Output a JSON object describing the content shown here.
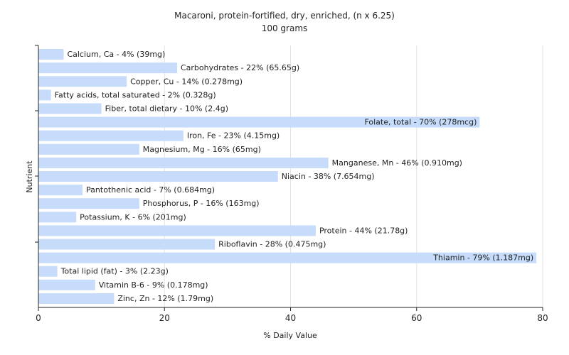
{
  "chart_data": {
    "type": "bar",
    "orientation": "horizontal",
    "title": "Macaroni, protein-fortified, dry, enriched, (n x 6.25)",
    "subtitle": "100 grams",
    "xlabel": "% Daily Value",
    "ylabel": "Nutrient",
    "xlim": [
      0,
      80
    ],
    "xticks": [
      "0",
      "20",
      "40",
      "60",
      "80"
    ],
    "grid": true,
    "bar_color": "#c6dcfa",
    "categories": [
      "Calcium, Ca",
      "Carbohydrates",
      "Copper, Cu",
      "Fatty acids, total saturated",
      "Fiber, total dietary",
      "Folate, total",
      "Iron, Fe",
      "Magnesium, Mg",
      "Manganese, Mn",
      "Niacin",
      "Pantothenic acid",
      "Phosphorus, P",
      "Potassium, K",
      "Protein",
      "Riboflavin",
      "Thiamin",
      "Total lipid (fat)",
      "Vitamin B-6",
      "Zinc, Zn"
    ],
    "values": [
      4,
      22,
      14,
      2,
      10,
      70,
      23,
      16,
      46,
      38,
      7,
      16,
      6,
      44,
      28,
      79,
      3,
      9,
      12
    ],
    "labels": [
      "Calcium, Ca - 4% (39mg)",
      "Carbohydrates - 22% (65.65g)",
      "Copper, Cu - 14% (0.278mg)",
      "Fatty acids, total saturated - 2% (0.328g)",
      "Fiber, total dietary - 10% (2.4g)",
      "Folate, total - 70% (278mcg)",
      "Iron, Fe - 23% (4.15mg)",
      "Magnesium, Mg - 16% (65mg)",
      "Manganese, Mn - 46% (0.910mg)",
      "Niacin - 38% (7.654mg)",
      "Pantothenic acid - 7% (0.684mg)",
      "Phosphorus, P - 16% (163mg)",
      "Potassium, K - 6% (201mg)",
      "Protein - 44% (21.78g)",
      "Riboflavin - 28% (0.475mg)",
      "Thiamin - 79% (1.187mg)",
      "Total lipid (fat) - 3% (2.23g)",
      "Vitamin B-6 - 9% (0.178mg)",
      "Zinc, Zn - 12% (1.79mg)"
    ]
  }
}
